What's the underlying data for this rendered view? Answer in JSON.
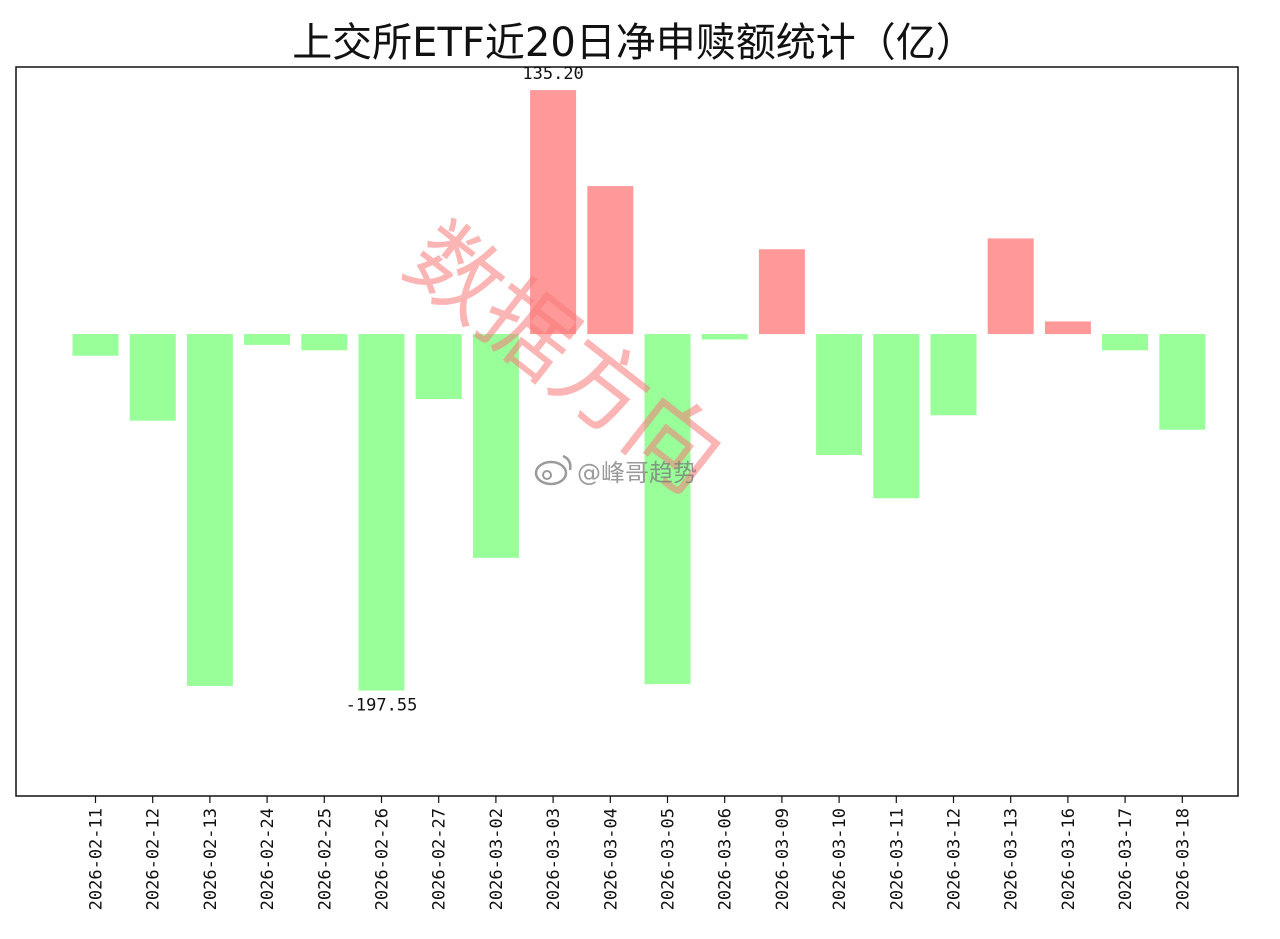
{
  "chart_data": {
    "type": "bar",
    "title": "上交所ETF近20日净申赎额统计（亿）",
    "categories": [
      "2026-02-11",
      "2026-02-12",
      "2026-02-13",
      "2026-02-24",
      "2026-02-25",
      "2026-02-26",
      "2026-02-27",
      "2026-03-02",
      "2026-03-03",
      "2026-03-04",
      "2026-03-05",
      "2026-03-06",
      "2026-03-09",
      "2026-03-10",
      "2026-03-11",
      "2026-03-12",
      "2026-03-13",
      "2026-03-16",
      "2026-03-17",
      "2026-03-18"
    ],
    "values": [
      -12,
      -48,
      -195,
      -6,
      -9,
      -197.55,
      -36,
      -124,
      135.2,
      82,
      -194,
      -3,
      47,
      -67,
      -91,
      -45,
      53,
      7,
      -9,
      -53
    ],
    "ylim": [
      -256,
      148
    ],
    "grid": false,
    "data_labels": [
      {
        "category": "2026-03-03",
        "text": "135.20"
      },
      {
        "category": "2026-02-26",
        "text": "-197.55"
      }
    ],
    "colors": {
      "positive": "#ff9999",
      "negative": "#99ff99"
    }
  },
  "watermarks": {
    "diagonal": "数据方向",
    "weibo": "@峰哥趋势"
  }
}
